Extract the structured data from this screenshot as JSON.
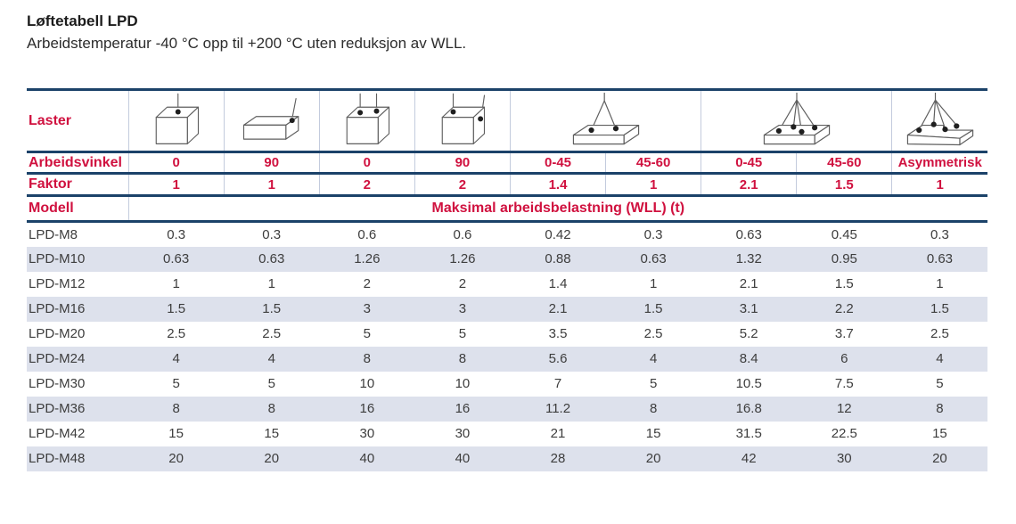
{
  "page": {
    "title": "Løftetabell LPD",
    "subtitle": "Arbeidstemperatur -40 °C opp til +200 °C uten reduksjon av WLL."
  },
  "table": {
    "laster_label": "Laster",
    "load_icons": [
      {
        "name": "load-cube-single-vertical-icon",
        "span": 1
      },
      {
        "name": "load-box-side-90deg-icon",
        "span": 1
      },
      {
        "name": "load-cube-two-point-vertical-icon",
        "span": 1
      },
      {
        "name": "load-cube-top-and-side-90deg-icon",
        "span": 1
      },
      {
        "name": "load-slab-two-leg-sling-icon",
        "span": 2
      },
      {
        "name": "load-slab-four-leg-sling-icon",
        "span": 2
      },
      {
        "name": "load-slab-asymmetric-sling-icon",
        "span": 1
      }
    ],
    "arbeidsvinkel": {
      "label": "Arbeidsvinkel",
      "values": [
        "0",
        "90",
        "0",
        "90",
        "0-45",
        "45-60",
        "0-45",
        "45-60",
        "Asymmetrisk"
      ]
    },
    "faktor": {
      "label": "Faktor",
      "values": [
        "1",
        "1",
        "2",
        "2",
        "1.4",
        "1",
        "2.1",
        "1.5",
        "1"
      ]
    },
    "modell_label": "Modell",
    "wll_header": "Maksimal arbeidsbelastning (WLL) (t)",
    "rows": [
      {
        "model": "LPD-M8",
        "values": [
          "0.3",
          "0.3",
          "0.6",
          "0.6",
          "0.42",
          "0.3",
          "0.63",
          "0.45",
          "0.3"
        ]
      },
      {
        "model": "LPD-M10",
        "values": [
          "0.63",
          "0.63",
          "1.26",
          "1.26",
          "0.88",
          "0.63",
          "1.32",
          "0.95",
          "0.63"
        ]
      },
      {
        "model": "LPD-M12",
        "values": [
          "1",
          "1",
          "2",
          "2",
          "1.4",
          "1",
          "2.1",
          "1.5",
          "1"
        ]
      },
      {
        "model": "LPD-M16",
        "values": [
          "1.5",
          "1.5",
          "3",
          "3",
          "2.1",
          "1.5",
          "3.1",
          "2.2",
          "1.5"
        ]
      },
      {
        "model": "LPD-M20",
        "values": [
          "2.5",
          "2.5",
          "5",
          "5",
          "3.5",
          "2.5",
          "5.2",
          "3.7",
          "2.5"
        ]
      },
      {
        "model": "LPD-M24",
        "values": [
          "4",
          "4",
          "8",
          "8",
          "5.6",
          "4",
          "8.4",
          "6",
          "4"
        ]
      },
      {
        "model": "LPD-M30",
        "values": [
          "5",
          "5",
          "10",
          "10",
          "7",
          "5",
          "10.5",
          "7.5",
          "5"
        ]
      },
      {
        "model": "LPD-M36",
        "values": [
          "8",
          "8",
          "16",
          "16",
          "11.2",
          "8",
          "16.8",
          "12",
          "8"
        ]
      },
      {
        "model": "LPD-M42",
        "values": [
          "15",
          "15",
          "30",
          "30",
          "21",
          "15",
          "31.5",
          "22.5",
          "15"
        ]
      },
      {
        "model": "LPD-M48",
        "values": [
          "20",
          "20",
          "40",
          "40",
          "28",
          "20",
          "42",
          "30",
          "20"
        ]
      }
    ],
    "colors": {
      "accent_red": "#d0113f",
      "rule_navy": "#1b4269",
      "row_shade": "#dde1ec",
      "body_text": "#3d3d3d"
    }
  }
}
